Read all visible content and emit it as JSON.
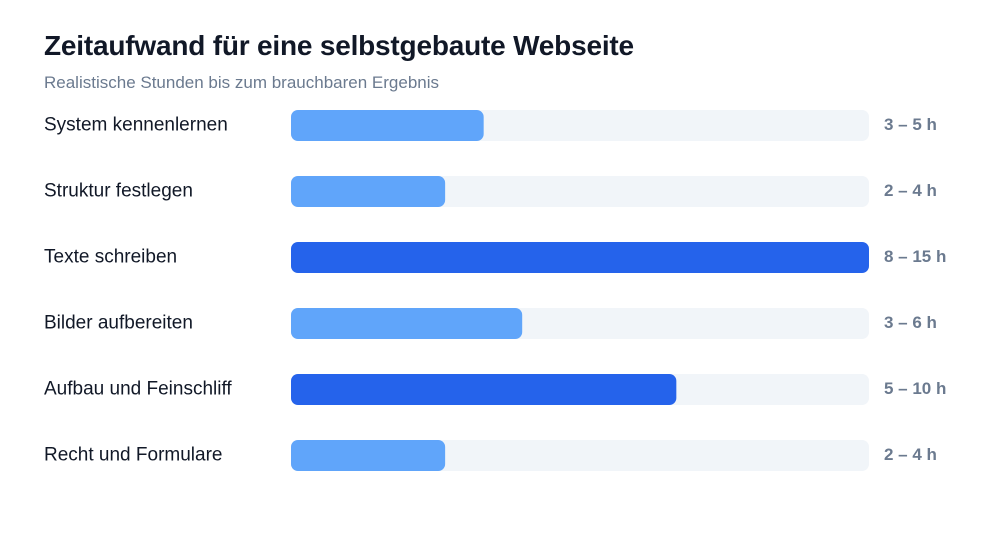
{
  "chart_data": {
    "type": "bar",
    "orientation": "horizontal",
    "title": "Zeitaufwand für eine selbstgebaute Webseite",
    "subtitle": "Realistische Stunden bis zum brauchbaren Ergebnis",
    "categories": [
      "System kennenlernen",
      "Struktur festlegen",
      "Texte schreiben",
      "Bilder aufbereiten",
      "Aufbau und Feinschliff",
      "Recht und Formulare"
    ],
    "series": [
      {
        "values": [
          5,
          4,
          15,
          6,
          10,
          4
        ]
      }
    ],
    "value_labels": [
      "3 – 5 h",
      "2 – 4 h",
      "8 – 15 h",
      "3 – 6 h",
      "5 – 10 h",
      "2 – 4 h"
    ],
    "highlight": [
      false,
      false,
      true,
      false,
      true,
      false
    ],
    "xlim": [
      0,
      15
    ],
    "grid": false,
    "colors": {
      "bar": "#60a5fa",
      "bar_highlight": "#2563eb",
      "track": "#f1f5f9"
    }
  }
}
